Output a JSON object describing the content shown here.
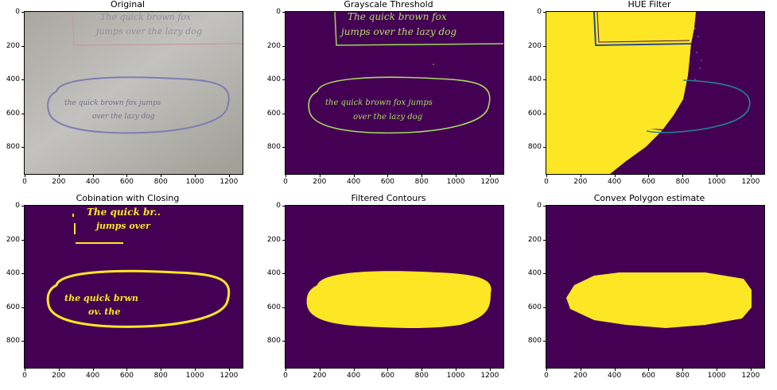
{
  "figure": {
    "panels": [
      {
        "id": "original",
        "title": "Original"
      },
      {
        "id": "grayscale-threshold",
        "title": "Grayscale Threshold"
      },
      {
        "id": "hue-filter",
        "title": "HUE Filter"
      },
      {
        "id": "combination-closing",
        "title": "Cobination with Closing"
      },
      {
        "id": "filtered-contours",
        "title": "Filtered Contours"
      },
      {
        "id": "convex-polygon",
        "title": "Convex Polygon estimate"
      }
    ],
    "x_ticks": [
      "0",
      "200",
      "400",
      "600",
      "800",
      "1000",
      "1200"
    ],
    "y_ticks": [
      "0",
      "200",
      "400",
      "600",
      "800"
    ],
    "image_text": {
      "top_line1": "The quick brown fox",
      "top_line2": "jumps over the lazy dog",
      "oval_line1": "the quick brown fox jumps",
      "oval_line2": "over the lazy dog"
    },
    "colors": {
      "background_dark": "#440154",
      "highlight": "#fde725",
      "edge": "#5ec962",
      "paper": "#b9b8b3",
      "ink_blue": "#7b7fb4"
    }
  }
}
